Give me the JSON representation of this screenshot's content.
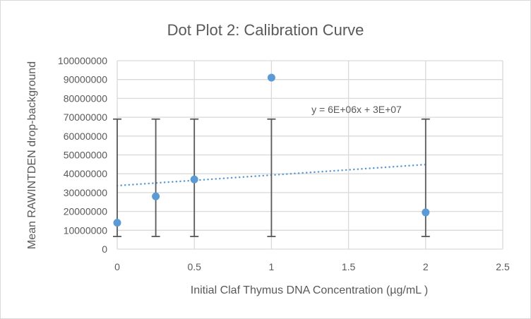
{
  "chart_data": {
    "type": "scatter",
    "title": "Dot Plot 2: Calibration Curve",
    "xlabel": "Initial Claf Thymus DNA Concentration (µg/mL )",
    "ylabel": "Mean RAWINTDEN drop-background",
    "xlim": [
      0,
      2.5
    ],
    "ylim": [
      0,
      100000000
    ],
    "xticks": [
      0,
      0.5,
      1,
      1.5,
      2,
      2.5
    ],
    "xtick_labels": [
      "0",
      "0.5",
      "1",
      "1.5",
      "2",
      "2.5"
    ],
    "yticks": [
      0,
      10000000,
      20000000,
      30000000,
      40000000,
      50000000,
      60000000,
      70000000,
      80000000,
      90000000,
      100000000
    ],
    "ytick_labels": [
      "0",
      "10000000",
      "20000000",
      "30000000",
      "40000000",
      "50000000",
      "60000000",
      "70000000",
      "80000000",
      "90000000",
      "100000000"
    ],
    "grid": true,
    "marker_color": "#5b9bd5",
    "errorbar_color": "#595959",
    "points": [
      {
        "x": 0,
        "y": 14000000,
        "err_low": 6700000,
        "err_high": 69000000
      },
      {
        "x": 0.25,
        "y": 28000000,
        "err_low": 6700000,
        "err_high": 69000000
      },
      {
        "x": 0.5,
        "y": 37000000,
        "err_low": 6700000,
        "err_high": 69000000
      },
      {
        "x": 1,
        "y": 91000000,
        "err_low": 6700000,
        "err_high": 69000000
      },
      {
        "x": 2,
        "y": 19500000,
        "err_low": 6700000,
        "err_high": 69000000
      }
    ],
    "trendline": {
      "type": "linear",
      "style": "dotted",
      "slope": 5600000,
      "intercept": 33700000,
      "x_range": [
        0,
        2
      ],
      "equation": "y = 6E+06x + 3E+07"
    }
  }
}
